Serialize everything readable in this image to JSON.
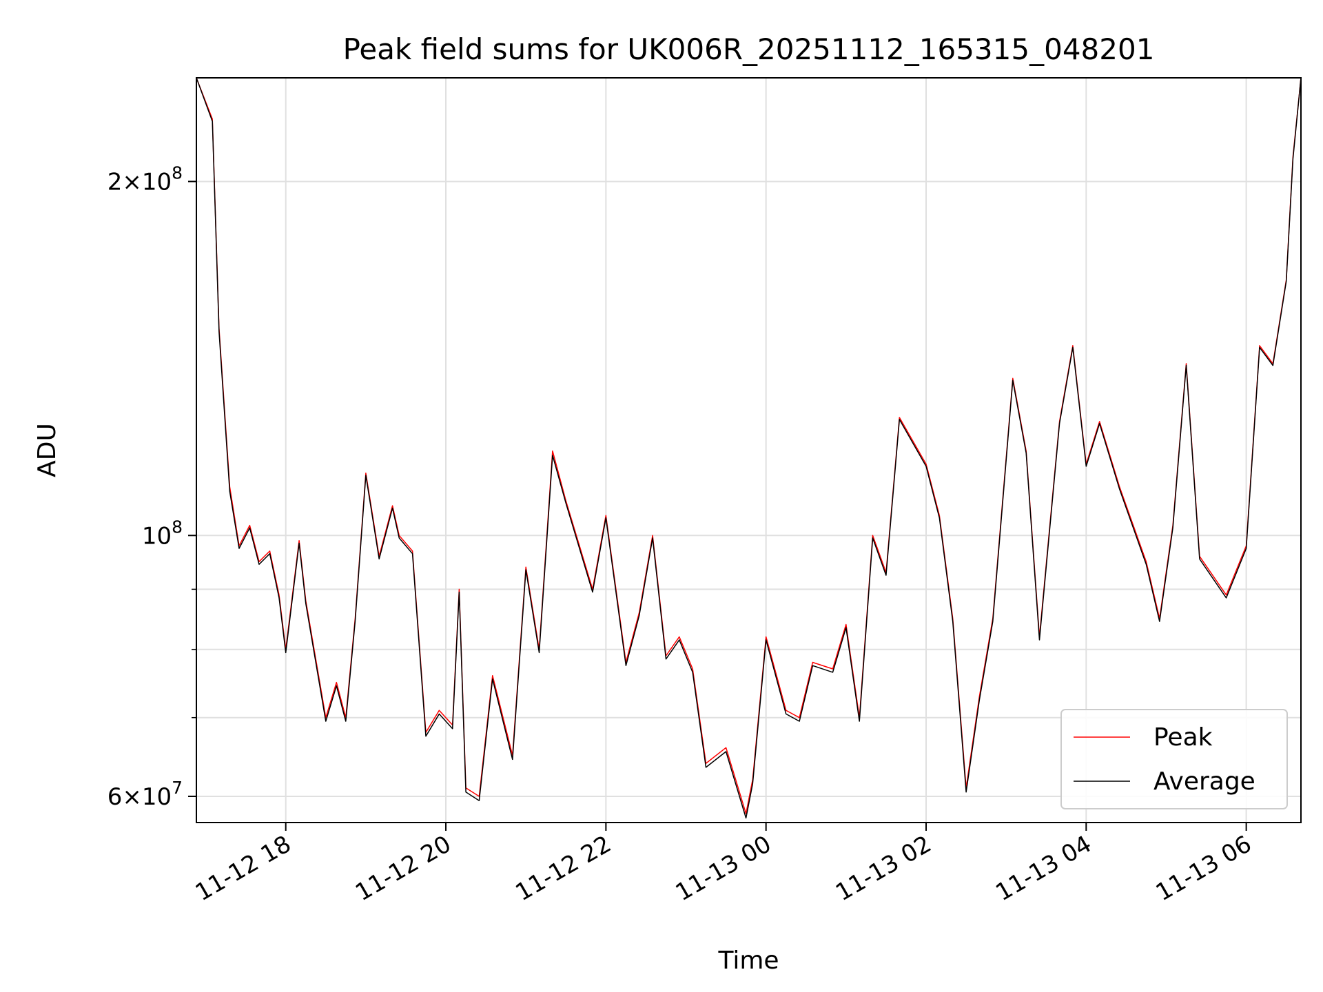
{
  "chart_data": {
    "type": "line",
    "title": "Peak field sums for UK006R_20251112_165315_048201",
    "xlabel": "Time",
    "ylabel": "ADU",
    "yscale": "log",
    "xlim": [
      "2025-11-12T16:53",
      "2025-11-13T06:41"
    ],
    "ylim": [
      57000000,
      245000000
    ],
    "grid": true,
    "legend_position": "lower right",
    "x_ticks": [
      {
        "t": "2025-11-12T18:00",
        "label": "11-12 18"
      },
      {
        "t": "2025-11-12T20:00",
        "label": "11-12 20"
      },
      {
        "t": "2025-11-12T22:00",
        "label": "11-12 22"
      },
      {
        "t": "2025-11-13T00:00",
        "label": "11-13 00"
      },
      {
        "t": "2025-11-13T02:00",
        "label": "11-13 02"
      },
      {
        "t": "2025-11-13T04:00",
        "label": "11-13 04"
      },
      {
        "t": "2025-11-13T06:00",
        "label": "11-13 06"
      }
    ],
    "y_ticks": [
      {
        "value": 60000000,
        "base": "6",
        "exp": "7"
      },
      {
        "value": 100000000,
        "base": "",
        "exp": "8"
      },
      {
        "value": 200000000,
        "base": "2",
        "exp": "8"
      }
    ],
    "y_minor_ticks": [
      70000000,
      80000000,
      90000000
    ],
    "x": [
      "2025-11-12T16:53",
      "2025-11-12T17:05",
      "2025-11-12T17:10",
      "2025-11-12T17:18",
      "2025-11-12T17:25",
      "2025-11-12T17:33",
      "2025-11-12T17:40",
      "2025-11-12T17:48",
      "2025-11-12T17:55",
      "2025-11-12T18:00",
      "2025-11-12T18:10",
      "2025-11-12T18:15",
      "2025-11-12T18:30",
      "2025-11-12T18:38",
      "2025-11-12T18:45",
      "2025-11-12T18:52",
      "2025-11-12T19:00",
      "2025-11-12T19:10",
      "2025-11-12T19:20",
      "2025-11-12T19:25",
      "2025-11-12T19:35",
      "2025-11-12T19:45",
      "2025-11-12T19:55",
      "2025-11-12T20:05",
      "2025-11-12T20:10",
      "2025-11-12T20:15",
      "2025-11-12T20:25",
      "2025-11-12T20:35",
      "2025-11-12T20:50",
      "2025-11-12T21:00",
      "2025-11-12T21:10",
      "2025-11-12T21:20",
      "2025-11-12T21:30",
      "2025-11-12T21:50",
      "2025-11-12T22:00",
      "2025-11-12T22:15",
      "2025-11-12T22:25",
      "2025-11-12T22:35",
      "2025-11-12T22:45",
      "2025-11-12T22:55",
      "2025-11-12T23:05",
      "2025-11-12T23:15",
      "2025-11-12T23:30",
      "2025-11-12T23:45",
      "2025-11-12T23:50",
      "2025-11-13T00:00",
      "2025-11-13T00:15",
      "2025-11-13T00:25",
      "2025-11-13T00:35",
      "2025-11-13T00:50",
      "2025-11-13T01:00",
      "2025-11-13T01:10",
      "2025-11-13T01:20",
      "2025-11-13T01:30",
      "2025-11-13T01:40",
      "2025-11-13T02:00",
      "2025-11-13T02:10",
      "2025-11-13T02:20",
      "2025-11-13T02:30",
      "2025-11-13T02:40",
      "2025-11-13T02:50",
      "2025-11-13T03:05",
      "2025-11-13T03:15",
      "2025-11-13T03:25",
      "2025-11-13T03:40",
      "2025-11-13T03:50",
      "2025-11-13T04:00",
      "2025-11-13T04:10",
      "2025-11-13T04:25",
      "2025-11-13T04:45",
      "2025-11-13T04:55",
      "2025-11-13T05:05",
      "2025-11-13T05:15",
      "2025-11-13T05:25",
      "2025-11-13T05:45",
      "2025-11-13T06:00",
      "2025-11-13T06:10",
      "2025-11-13T06:20",
      "2025-11-13T06:30",
      "2025-11-13T06:35",
      "2025-11-13T06:41"
    ],
    "series": [
      {
        "name": "Peak",
        "color": "#ff0000",
        "values": [
          245000000,
          226000000,
          150000000,
          110000000,
          98000000,
          102000000,
          95000000,
          97000000,
          89000000,
          80000000,
          99000000,
          88000000,
          70000000,
          75000000,
          70000000,
          85000000,
          113000000,
          96000000,
          106000000,
          100000000,
          97000000,
          68000000,
          71000000,
          69000000,
          90000000,
          61000000,
          60000000,
          76000000,
          65000000,
          94000000,
          80000000,
          118000000,
          107000000,
          90000000,
          104000000,
          78000000,
          86000000,
          100000000,
          79000000,
          82000000,
          77000000,
          64000000,
          66000000,
          58000000,
          62000000,
          82000000,
          71000000,
          70000000,
          78000000,
          77000000,
          84000000,
          70000000,
          100000000,
          93000000,
          126000000,
          115000000,
          104000000,
          85000000,
          61000000,
          73000000,
          85000000,
          136000000,
          118000000,
          82000000,
          125000000,
          145000000,
          115000000,
          125000000,
          110000000,
          95000000,
          85000000,
          102000000,
          140000000,
          96000000,
          89000000,
          98000000,
          145000000,
          140000000,
          165000000,
          210000000,
          245000000
        ]
      },
      {
        "name": "Average",
        "color": "#000000",
        "values": [
          245000000,
          225000000,
          149000000,
          109000000,
          97500000,
          101500000,
          94500000,
          96500000,
          88500000,
          79500000,
          98500000,
          87500000,
          69500000,
          74500000,
          69500000,
          84500000,
          112500000,
          95500000,
          105500000,
          99500000,
          96500000,
          67500000,
          70500000,
          68500000,
          89500000,
          60500000,
          59500000,
          75500000,
          64500000,
          93500000,
          79500000,
          117000000,
          106500000,
          89500000,
          103500000,
          77500000,
          85500000,
          99500000,
          78500000,
          81500000,
          76500000,
          63500000,
          65500000,
          57500000,
          61500000,
          81500000,
          70500000,
          69500000,
          77500000,
          76500000,
          83500000,
          69500000,
          99500000,
          92500000,
          125500000,
          114500000,
          103500000,
          84500000,
          60500000,
          72500000,
          84500000,
          135500000,
          117500000,
          81500000,
          124500000,
          144500000,
          114500000,
          124500000,
          109500000,
          94500000,
          84500000,
          101500000,
          139500000,
          95500000,
          88500000,
          97500000,
          144500000,
          139500000,
          164500000,
          209000000,
          245000000
        ]
      }
    ]
  }
}
